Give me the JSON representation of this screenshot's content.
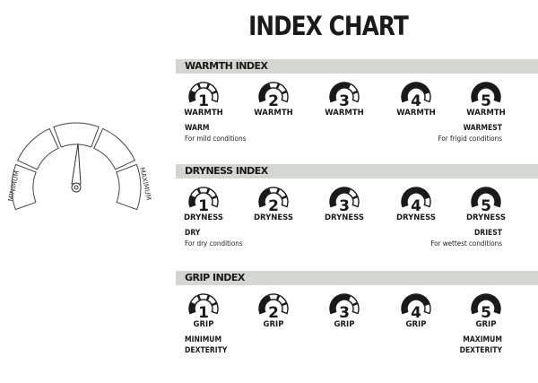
{
  "title": "INDEX CHART",
  "gauge": {
    "min_label": "MINIMUM",
    "max_label": "MAXIMUM",
    "level": 3
  },
  "sections": [
    {
      "header": "WARMTH INDEX",
      "levels": [
        {
          "n": "1",
          "label": "WARMTH"
        },
        {
          "n": "2",
          "label": "WARMTH"
        },
        {
          "n": "3",
          "label": "WARMTH"
        },
        {
          "n": "4",
          "label": "WARMTH"
        },
        {
          "n": "5",
          "label": "WARMTH"
        }
      ],
      "low": {
        "title": "WARM",
        "sub": "For mild conditions"
      },
      "high": {
        "title": "WARMEST",
        "sub": "For frigid conditions"
      }
    },
    {
      "header": "DRYNESS INDEX",
      "levels": [
        {
          "n": "1",
          "label": "DRYNESS"
        },
        {
          "n": "2",
          "label": "DRYNESS"
        },
        {
          "n": "3",
          "label": "DRYNESS"
        },
        {
          "n": "4",
          "label": "DRYNESS"
        },
        {
          "n": "5",
          "label": "DRYNESS"
        }
      ],
      "low": {
        "title": "DRY",
        "sub": "For dry conditions"
      },
      "high": {
        "title": "DRIEST",
        "sub": "For wettest conditions"
      }
    },
    {
      "header": "GRIP INDEX",
      "levels": [
        {
          "n": "1",
          "label": "GRIP"
        },
        {
          "n": "2",
          "label": "GRIP"
        },
        {
          "n": "3",
          "label": "GRIP"
        },
        {
          "n": "4",
          "label": "GRIP"
        },
        {
          "n": "5",
          "label": "GRIP"
        }
      ],
      "low": {
        "title": "MINIMUM",
        "sub": "DEXTERITY"
      },
      "high": {
        "title": "MAXIMUM",
        "sub": "DEXTERITY"
      }
    }
  ]
}
